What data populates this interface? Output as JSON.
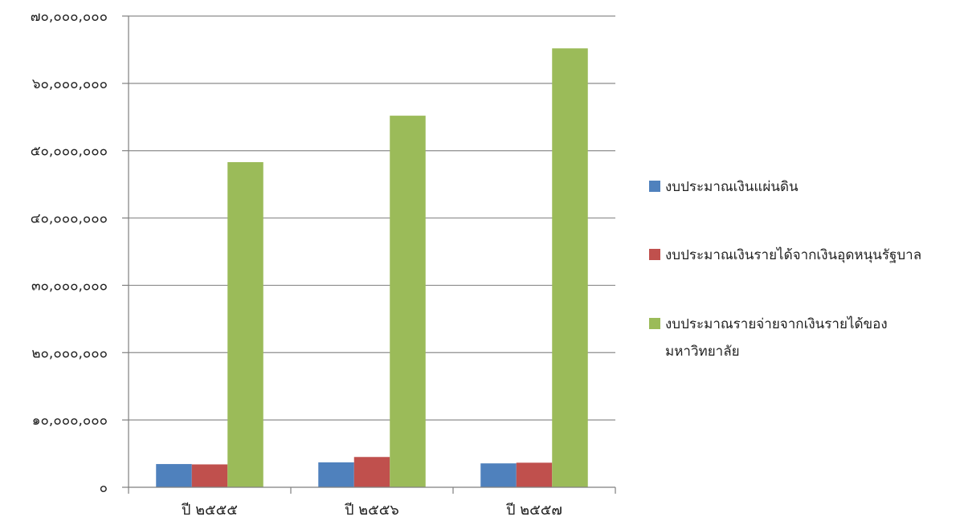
{
  "chart_data": {
    "type": "bar",
    "title": "",
    "xlabel": "",
    "ylabel": "",
    "categories": [
      "ปี ๒๕๕๕",
      "ปี ๒๕๕๖",
      "ปี ๒๕๕๗"
    ],
    "y_ticks": [
      "๐",
      "๑๐,๐๐๐,๐๐๐",
      "๒๐,๐๐๐,๐๐๐",
      "๓๐,๐๐๐,๐๐๐",
      "๔๐,๐๐๐,๐๐๐",
      "๕๐,๐๐๐,๐๐๐",
      "๖๐,๐๐๐,๐๐๐",
      "๗๐,๐๐๐,๐๐๐"
    ],
    "ylim": [
      0,
      70000000
    ],
    "grid": true,
    "legend_position": "right",
    "series": [
      {
        "name": "งบประมาณเงินแผ่นดิน",
        "color": "#4f81bd",
        "values": [
          3450000,
          3700000,
          3550000
        ]
      },
      {
        "name": "งบประมาณเงินรายได้จากเงินอุดหนุนรัฐบาล",
        "color": "#c0504d",
        "values": [
          3400000,
          4500000,
          3650000
        ]
      },
      {
        "name": "งบประมาณรายจ่ายจากเงินรายได้ของมหาวิทยาลัย",
        "color": "#9bbb59",
        "values": [
          48300000,
          55200000,
          65200000
        ]
      }
    ],
    "legend_lines": [
      [
        "งบประมาณเงินแผ่นดิน"
      ],
      [
        "งบประมาณเงินรายได้จากเงินอุดหนุนรัฐบาล"
      ],
      [
        "งบประมาณรายจ่ายจากเงินรายได้ของ",
        "มหาวิทยาลัย"
      ]
    ]
  }
}
